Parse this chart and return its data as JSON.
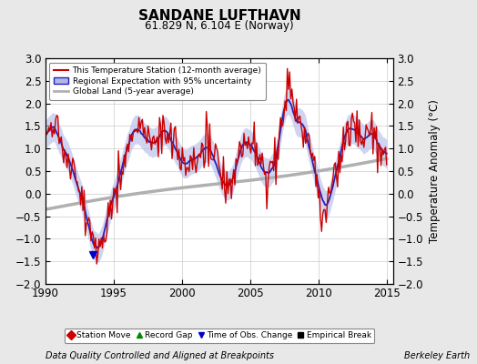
{
  "title": "SANDANE LUFTHAVN",
  "subtitle": "61.829 N, 6.104 E (Norway)",
  "xlabel_bottom": "Data Quality Controlled and Aligned at Breakpoints",
  "xlabel_right": "Berkeley Earth",
  "ylabel": "Temperature Anomaly (°C)",
  "xlim": [
    1990,
    2015.5
  ],
  "ylim": [
    -2,
    3
  ],
  "yticks": [
    -2,
    -1.5,
    -1,
    -0.5,
    0,
    0.5,
    1,
    1.5,
    2,
    2.5,
    3
  ],
  "xticks": [
    1990,
    1995,
    2000,
    2005,
    2010,
    2015
  ],
  "bg_color": "#e8e8e8",
  "plot_bg_color": "#ffffff",
  "grid_color": "#cccccc",
  "station_color": "#cc0000",
  "regional_color": "#2222bb",
  "regional_fill_color": "#b0b8e8",
  "global_color": "#b0b0b0",
  "legend_items": [
    {
      "label": "This Temperature Station (12-month average)",
      "color": "#cc0000",
      "lw": 1.5
    },
    {
      "label": "Regional Expectation with 95% uncertainty",
      "color": "#2222bb",
      "lw": 1.5
    },
    {
      "label": "Global Land (5-year average)",
      "color": "#b0b0b0",
      "lw": 2.0
    }
  ],
  "marker_legend": [
    {
      "marker": "D",
      "color": "#cc0000",
      "label": "Station Move"
    },
    {
      "marker": "^",
      "color": "#008800",
      "label": "Record Gap"
    },
    {
      "marker": "v",
      "color": "#0000cc",
      "label": "Time of Obs. Change"
    },
    {
      "marker": "s",
      "color": "#000000",
      "label": "Empirical Break"
    }
  ]
}
